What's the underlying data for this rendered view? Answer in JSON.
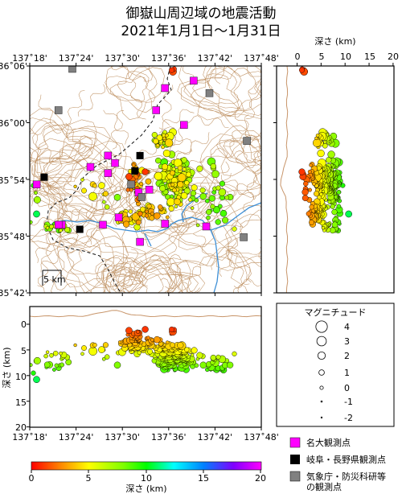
{
  "title": {
    "line1": "御嶽山周辺域の地震活動",
    "line2": "2021年1月1日～1月31日"
  },
  "map": {
    "lon_ticks": [
      "137˚18'",
      "137˚24'",
      "137˚30'",
      "137˚36'",
      "137˚42'",
      "137˚48'"
    ],
    "lat_ticks": [
      "36˚06'",
      "36˚00'",
      "35˚54'",
      "35˚48'",
      "35˚42'"
    ],
    "scale_bar_label": "5 km",
    "colors": {
      "contour": "#b5804a",
      "river": "#3d8fd6",
      "boundary": "#111111",
      "frame": "#000000"
    }
  },
  "depth_axis_right": {
    "label": "深さ (km)",
    "ticks": [
      "0",
      "5",
      "10",
      "15",
      "20"
    ]
  },
  "depth_axis_bottom": {
    "label": "深さ (km)",
    "ticks": [
      "0",
      "5",
      "10",
      "15",
      "20"
    ],
    "lon_ticks": [
      "137˚18'",
      "137˚24'",
      "137˚30'",
      "137˚36'",
      "137˚42'",
      "137˚48'"
    ]
  },
  "magnitude_legend": {
    "title": "マグニチュード",
    "entries": [
      "4",
      "3",
      "2",
      "1",
      "0",
      "-1",
      "-2"
    ]
  },
  "station_legend": [
    {
      "label": "名大観測点",
      "color": "#ff00ff"
    },
    {
      "label": "岐阜・長野県観測点",
      "color": "#000000"
    },
    {
      "label": "気象庁・防災科研等",
      "label2": "の観測点",
      "color": "#808080"
    }
  ],
  "colorbar": {
    "label": "深さ (km)",
    "ticks": [
      "0",
      "5",
      "10",
      "15",
      "20"
    ]
  },
  "stations": [
    {
      "type": "nagoya",
      "lon": 137.592,
      "lat": 36.061
    },
    {
      "type": "nagoya",
      "lon": 137.654,
      "lat": 36.074
    },
    {
      "type": "nagoya",
      "lon": 137.573,
      "lat": 36.022
    },
    {
      "type": "nagoya",
      "lon": 137.633,
      "lat": 35.996
    },
    {
      "type": "nagoya",
      "lon": 137.469,
      "lat": 35.942
    },
    {
      "type": "nagoya",
      "lon": 137.484,
      "lat": 35.929
    },
    {
      "type": "nagoya",
      "lon": 137.469,
      "lat": 35.911
    },
    {
      "type": "nagoya",
      "lon": 137.431,
      "lat": 35.922
    },
    {
      "type": "nagoya",
      "lon": 137.535,
      "lat": 35.877
    },
    {
      "type": "nagoya",
      "lon": 137.558,
      "lat": 35.882
    },
    {
      "type": "nagoya",
      "lon": 137.369,
      "lat": 35.82
    },
    {
      "type": "nagoya",
      "lon": 137.315,
      "lat": 35.891
    },
    {
      "type": "nagoya",
      "lon": 137.458,
      "lat": 35.82
    },
    {
      "type": "nagoya",
      "lon": 137.492,
      "lat": 35.833
    },
    {
      "type": "nagoya",
      "lon": 137.592,
      "lat": 35.822
    },
    {
      "type": "nagoya",
      "lon": 137.681,
      "lat": 35.817
    },
    {
      "type": "nagoya",
      "lon": 137.538,
      "lat": 35.79
    },
    {
      "type": "nagoya",
      "lon": 137.362,
      "lat": 35.82
    },
    {
      "type": "prefecture",
      "lon": 137.538,
      "lat": 35.942
    },
    {
      "type": "prefecture",
      "lon": 137.331,
      "lat": 35.904
    },
    {
      "type": "prefecture",
      "lon": 137.408,
      "lat": 35.812
    },
    {
      "type": "prefecture",
      "lon": 137.527,
      "lat": 35.915
    },
    {
      "type": "jma",
      "lon": 137.392,
      "lat": 36.095
    },
    {
      "type": "jma",
      "lon": 137.362,
      "lat": 36.022
    },
    {
      "type": "jma",
      "lon": 137.688,
      "lat": 36.052
    },
    {
      "type": "jma",
      "lon": 137.769,
      "lat": 35.968
    },
    {
      "type": "jma",
      "lon": 137.519,
      "lat": 35.891
    },
    {
      "type": "jma",
      "lon": 137.762,
      "lat": 35.798
    },
    {
      "type": "jma",
      "lon": 137.542,
      "lat": 35.869
    }
  ]
}
